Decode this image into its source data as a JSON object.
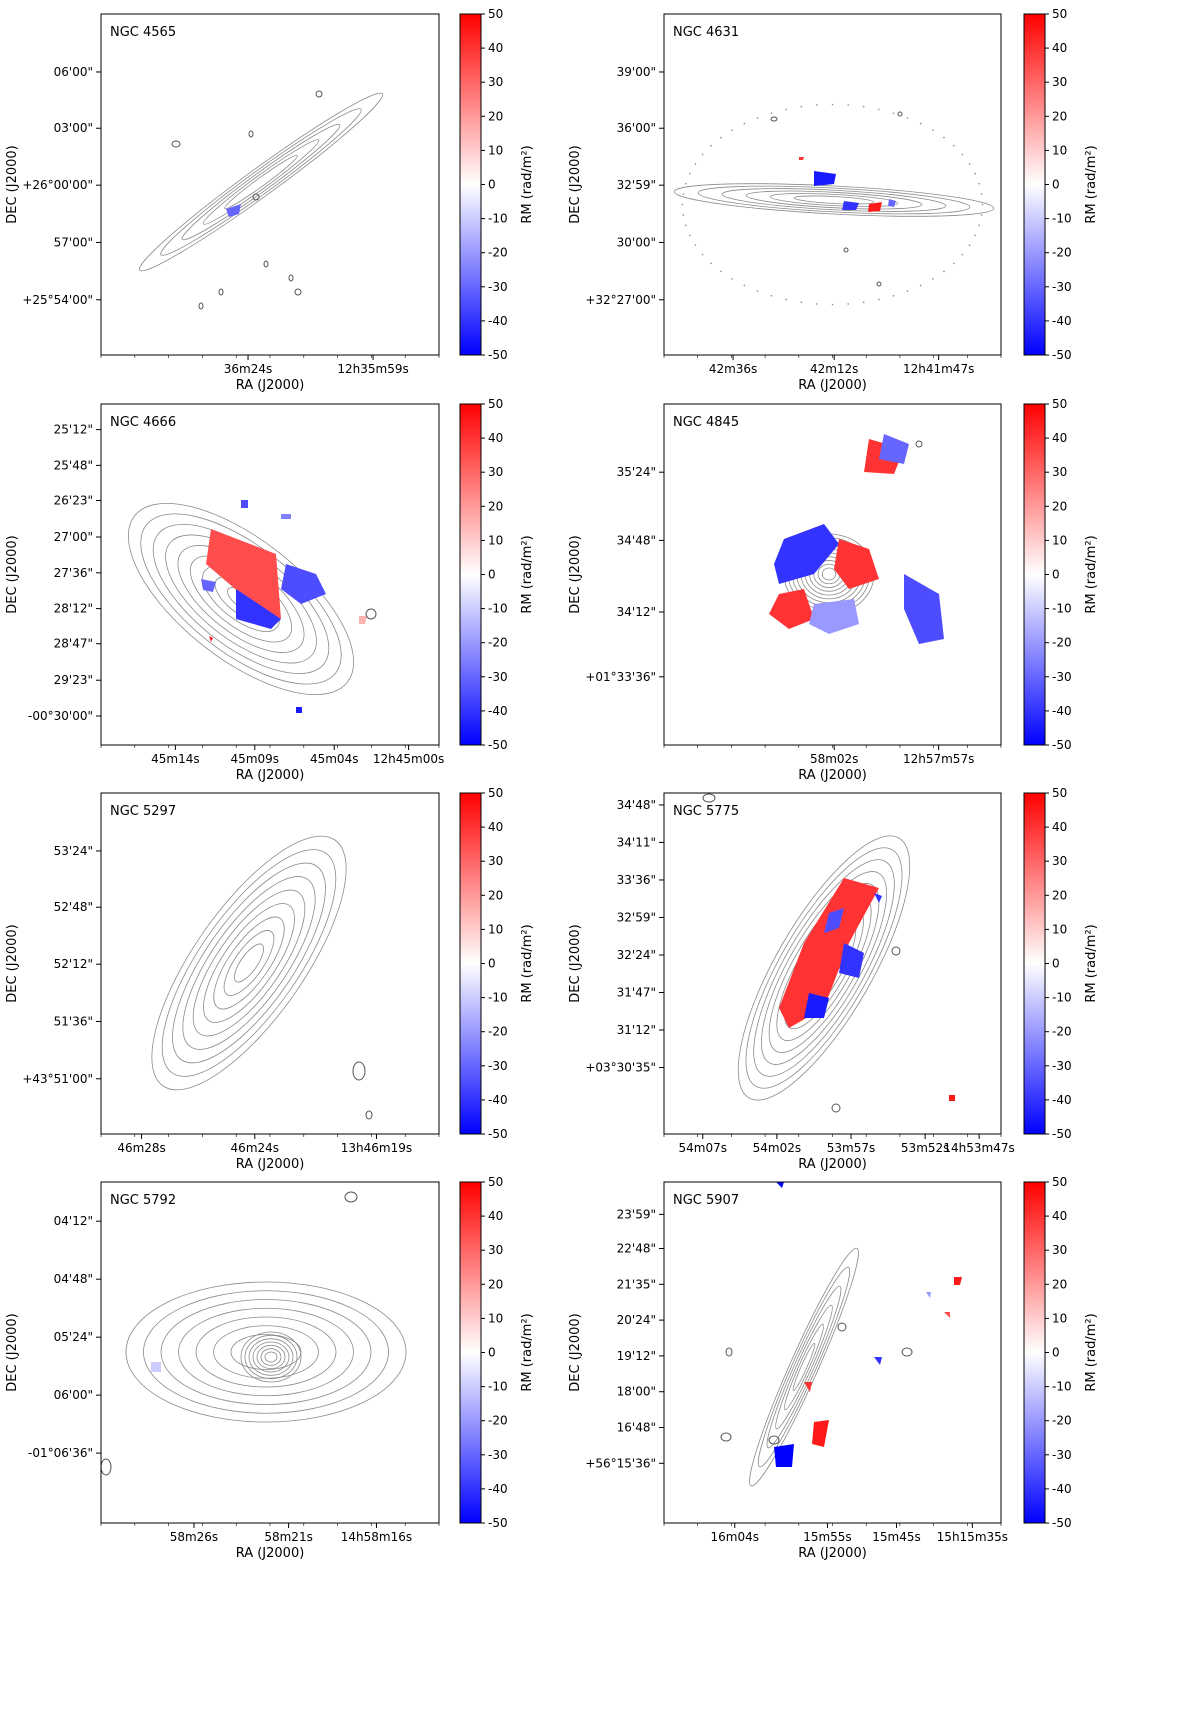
{
  "figure": {
    "colorbar": {
      "label": "RM (rad/m²)",
      "ticks": [
        "50",
        "40",
        "30",
        "20",
        "10",
        "0",
        "-10",
        "-20",
        "-30",
        "-40",
        "-50"
      ],
      "min": -50,
      "max": 50,
      "cmap": [
        "#0000ff",
        "#ffffff",
        "#ff0000"
      ]
    },
    "contour_color": "#8a8a8a"
  },
  "chart_data": [
    {
      "type": "image",
      "title": "NGC 4565",
      "xlabel": "RA (J2000)",
      "ylabel": "DEC (J2000)",
      "xticks": [
        "36m24s",
        "12h35m59s"
      ],
      "yticks": [
        "06'00\"",
        "03'00\"",
        "+26°00'00\"",
        "57'00\"",
        "+25°54'00\""
      ],
      "morphology": "thin-edge-on"
    },
    {
      "type": "image",
      "title": "NGC 4631",
      "xlabel": "RA (J2000)",
      "ylabel": "DEC (J2000)",
      "xticks": [
        "42m36s",
        "42m12s",
        "12h41m47s"
      ],
      "yticks": [
        "39'00\"",
        "36'00\"",
        "32'59\"",
        "30'00\"",
        "+32°27'00\""
      ],
      "morphology": "horizontal-edge-on"
    },
    {
      "type": "image",
      "title": "NGC 4666",
      "xlabel": "RA (J2000)",
      "ylabel": "DEC (J2000)",
      "xticks": [
        "45m14s",
        "45m09s",
        "45m04s",
        "12h45m00s"
      ],
      "yticks": [
        "25'12\"",
        "25'48\"",
        "26'23\"",
        "27'00\"",
        "27'36\"",
        "28'12\"",
        "28'47\"",
        "29'23\"",
        "-00°30'00\""
      ],
      "morphology": "inclined-disk"
    },
    {
      "type": "image",
      "title": "NGC 4845",
      "xlabel": "RA (J2000)",
      "ylabel": "DEC (J2000)",
      "xticks": [
        "58m02s",
        "12h57m57s"
      ],
      "yticks": [
        "35'24\"",
        "34'48\"",
        "34'12\"",
        "+01°33'36\""
      ],
      "morphology": "compact-core"
    },
    {
      "type": "image",
      "title": "NGC 5297",
      "xlabel": "RA (J2000)",
      "ylabel": "DEC (J2000)",
      "xticks": [
        "46m28s",
        "46m24s",
        "13h46m19s"
      ],
      "yticks": [
        "53'24\"",
        "52'48\"",
        "52'12\"",
        "51'36\"",
        "+43°51'00\""
      ],
      "morphology": "inclined-contours-only"
    },
    {
      "type": "image",
      "title": "NGC 5775",
      "xlabel": "RA (J2000)",
      "ylabel": "DEC (J2000)",
      "xticks": [
        "54m07s",
        "54m02s",
        "53m57s",
        "53m52s",
        "14h53m47s"
      ],
      "yticks": [
        "34'48\"",
        "34'11\"",
        "33'36\"",
        "32'59\"",
        "32'24\"",
        "31'47\"",
        "31'12\"",
        "+03°30'35\""
      ],
      "morphology": "inclined-red-rm"
    },
    {
      "type": "image",
      "title": "NGC 5792",
      "xlabel": "RA (J2000)",
      "ylabel": "DEC (J2000)",
      "xticks": [
        "58m26s",
        "58m21s",
        "14h58m16s"
      ],
      "yticks": [
        "04'12\"",
        "04'48\"",
        "05'24\"",
        "06'00\"",
        "-01°06'36\""
      ],
      "morphology": "face-on-irregular"
    },
    {
      "type": "image",
      "title": "NGC 5907",
      "xlabel": "RA (J2000)",
      "ylabel": "DEC (J2000)",
      "xticks": [
        "16m04s",
        "15m55s",
        "15m45s",
        "15h15m35s"
      ],
      "yticks": [
        "23'59\"",
        "22'48\"",
        "21'35\"",
        "20'24\"",
        "19'12\"",
        "18'00\"",
        "16'48\"",
        "+56°15'36\""
      ],
      "morphology": "thin-edge-on-steep"
    }
  ]
}
